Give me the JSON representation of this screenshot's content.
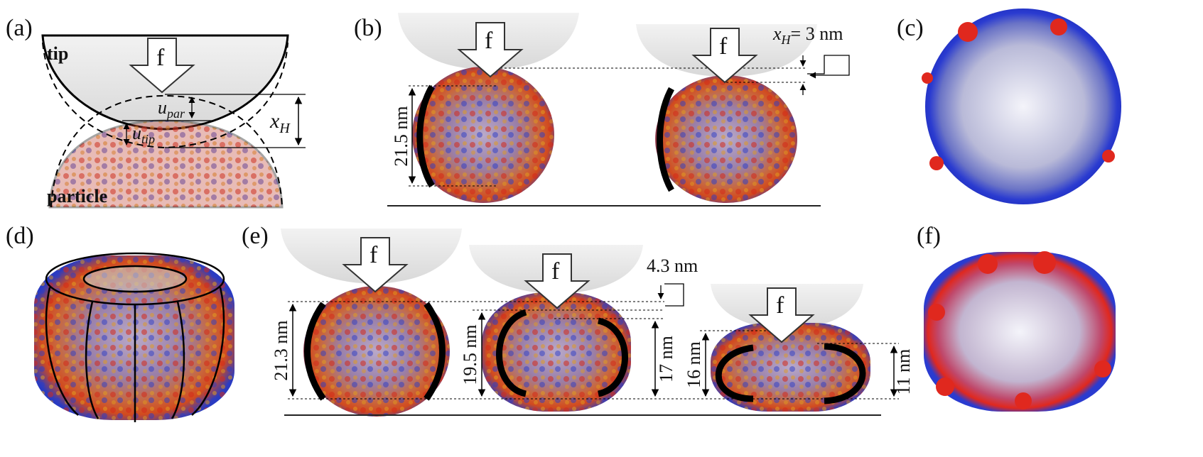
{
  "panels": {
    "a": {
      "label": "(a)",
      "tip": "tip",
      "force": "f",
      "u_par": {
        "base": "u",
        "sub": "par"
      },
      "u_tip": {
        "base": "u",
        "sub": "tip"
      },
      "x_h": {
        "base": "x",
        "sub": "H"
      },
      "particle": "particle"
    },
    "b": {
      "label": "(b)",
      "forces": [
        "f",
        "f"
      ],
      "x_h": {
        "base": "x",
        "sub": "H",
        "rest": "= 3 nm"
      },
      "height": "21.5 nm"
    },
    "c": {
      "label": "(c)"
    },
    "d": {
      "label": "(d)"
    },
    "e": {
      "label": "(e)",
      "forces": [
        "f",
        "f",
        "f"
      ],
      "gap": "4.3 nm",
      "heights": [
        "21.3 nm",
        "19.5 nm",
        "17 nm",
        "16 nm",
        "11 nm"
      ]
    },
    "f": {
      "label": "(f)"
    }
  }
}
